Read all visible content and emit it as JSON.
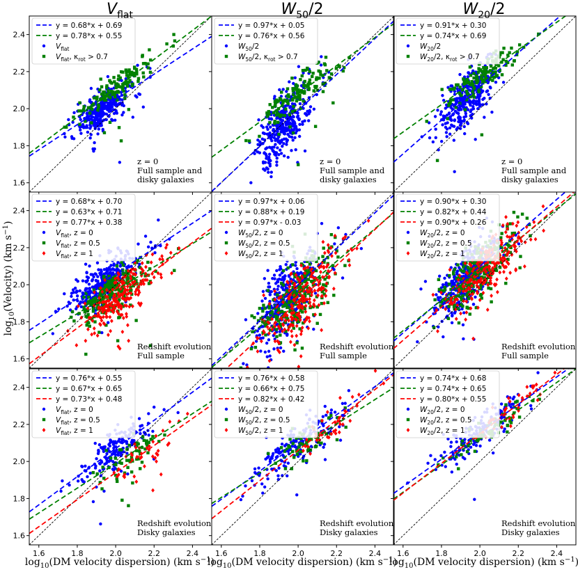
{
  "figure": {
    "ylabel_main": "log",
    "ylabel_sub": "10",
    "ylabel_tail": "(Velocity) (km s",
    "ylabel_sup": "−1",
    "ylabel_close": ")",
    "xlabel_main": "log",
    "xlabel_sub": "10",
    "xlabel_tail": "(DM velocity dispersion) (km s",
    "xlabel_sup": "−1",
    "xlabel_close": ")"
  },
  "columns": [
    {
      "title_main": "V",
      "title_sub": "flat",
      "title_rest": ""
    },
    {
      "title_main": "W",
      "title_sub": "50",
      "title_rest": "/2"
    },
    {
      "title_main": "W",
      "title_sub": "20",
      "title_rest": "/2"
    }
  ],
  "colors": {
    "blue": "#0000ff",
    "green": "#008000",
    "red": "#ff0000",
    "identity": "#000000"
  },
  "chart_data": {
    "type": "scatter",
    "xlim": [
      1.55,
      2.5
    ],
    "ylim": [
      1.55,
      2.5
    ],
    "xticks": [
      1.6,
      1.8,
      2.0,
      2.2,
      2.4
    ],
    "yticks": [
      1.6,
      1.8,
      2.0,
      2.2,
      2.4
    ],
    "xtick_labels": [
      "1.6",
      "1.8",
      "2.0",
      "2.2",
      "2.4"
    ],
    "ytick_labels": [
      "1.6",
      "1.8",
      "2.0",
      "2.2",
      "2.4"
    ],
    "panels": [
      {
        "row": 0,
        "col": 0,
        "annotation": [
          "z = 0",
          "Full sample and",
          "disky galaxies"
        ],
        "fits": [
          {
            "slope": 0.68,
            "intercept": 0.69,
            "color": "blue",
            "label": "y = 0.68*x + 0.69"
          },
          {
            "slope": 0.78,
            "intercept": 0.55,
            "color": "green",
            "label": "y = 0.78*x + 0.55"
          }
        ],
        "scatter": [
          {
            "color": "blue",
            "marker": "circle",
            "label_main": "V",
            "label_sub": "flat",
            "label_rest": "",
            "xc": 1.93,
            "xs": 0.07,
            "slope": 0.68,
            "intercept": 0.69,
            "noise": 0.05,
            "n": 320,
            "seed": 11
          },
          {
            "color": "green",
            "marker": "square",
            "label_main": "V",
            "label_sub": "flat",
            "label_rest": ", κ",
            "label_sub2": "rot",
            "label_rest2": " > 0.7",
            "xc": 2.0,
            "xs": 0.1,
            "slope": 0.78,
            "intercept": 0.55,
            "noise": 0.04,
            "n": 140,
            "seed": 12
          }
        ]
      },
      {
        "row": 0,
        "col": 1,
        "annotation": [
          "z = 0",
          "Full sample and",
          "disky galaxies"
        ],
        "fits": [
          {
            "slope": 0.97,
            "intercept": 0.05,
            "color": "blue",
            "label": "y = 0.97*x + 0.05"
          },
          {
            "slope": 0.76,
            "intercept": 0.56,
            "color": "green",
            "label": "y = 0.76*x + 0.56"
          }
        ],
        "scatter": [
          {
            "color": "blue",
            "marker": "circle",
            "label_main": "W",
            "label_sub": "50",
            "label_rest": "/2",
            "xc": 1.93,
            "xs": 0.07,
            "slope": 0.97,
            "intercept": 0.05,
            "noise": 0.09,
            "n": 340,
            "seed": 21
          },
          {
            "color": "green",
            "marker": "square",
            "label_main": "W",
            "label_sub": "50",
            "label_rest": "/2, κ",
            "label_sub2": "rot",
            "label_rest2": " > 0.7",
            "xc": 2.0,
            "xs": 0.1,
            "slope": 0.76,
            "intercept": 0.56,
            "noise": 0.04,
            "n": 140,
            "seed": 22
          }
        ]
      },
      {
        "row": 0,
        "col": 2,
        "annotation": [
          "z = 0",
          "Full sample and",
          "disky galaxies"
        ],
        "fits": [
          {
            "slope": 0.91,
            "intercept": 0.3,
            "color": "blue",
            "label": "y = 0.91*x + 0.30"
          },
          {
            "slope": 0.74,
            "intercept": 0.69,
            "color": "green",
            "label": "y = 0.74*x + 0.69"
          }
        ],
        "scatter": [
          {
            "color": "blue",
            "marker": "circle",
            "label_main": "W",
            "label_sub": "20",
            "label_rest": "/2",
            "xc": 1.93,
            "xs": 0.07,
            "slope": 0.91,
            "intercept": 0.3,
            "noise": 0.07,
            "n": 330,
            "seed": 31
          },
          {
            "color": "green",
            "marker": "square",
            "label_main": "W",
            "label_sub": "20",
            "label_rest": "/2, κ",
            "label_sub2": "rot",
            "label_rest2": " > 0.7",
            "xc": 2.0,
            "xs": 0.1,
            "slope": 0.74,
            "intercept": 0.69,
            "noise": 0.04,
            "n": 140,
            "seed": 32
          }
        ]
      },
      {
        "row": 1,
        "col": 0,
        "annotation": [
          "Redshift evolution",
          "Full sample"
        ],
        "fits": [
          {
            "slope": 0.68,
            "intercept": 0.7,
            "color": "blue",
            "label": "y = 0.68*x + 0.70"
          },
          {
            "slope": 0.63,
            "intercept": 0.71,
            "color": "green",
            "label": "y = 0.63*x + 0.71"
          },
          {
            "slope": 0.77,
            "intercept": 0.38,
            "color": "red",
            "label": "y = 0.77*x + 0.38"
          }
        ],
        "scatter": [
          {
            "color": "blue",
            "marker": "circle",
            "label_main": "V",
            "label_sub": "flat",
            "label_rest": ", z = 0",
            "xc": 1.93,
            "xs": 0.08,
            "slope": 0.68,
            "intercept": 0.7,
            "noise": 0.06,
            "n": 330,
            "seed": 41
          },
          {
            "color": "green",
            "marker": "square",
            "label_main": "V",
            "label_sub": "flat",
            "label_rest": ", z = 0.5",
            "xc": 1.98,
            "xs": 0.09,
            "slope": 0.63,
            "intercept": 0.71,
            "noise": 0.06,
            "n": 240,
            "seed": 42
          },
          {
            "color": "red",
            "marker": "diamond",
            "label_main": "V",
            "label_sub": "flat",
            "label_rest": ", z = 1",
            "xc": 2.02,
            "xs": 0.1,
            "slope": 0.77,
            "intercept": 0.38,
            "noise": 0.06,
            "n": 220,
            "seed": 43
          }
        ]
      },
      {
        "row": 1,
        "col": 1,
        "annotation": [
          "Redshift evolution",
          "Full sample"
        ],
        "fits": [
          {
            "slope": 0.97,
            "intercept": 0.06,
            "color": "blue",
            "label": "y = 0.97*x + 0.06"
          },
          {
            "slope": 0.88,
            "intercept": 0.19,
            "color": "green",
            "label": "y = 0.88*x + 0.19"
          },
          {
            "slope": 0.97,
            "intercept": -0.03,
            "color": "red",
            "label": "y = 0.97*x - 0.03"
          }
        ],
        "scatter": [
          {
            "color": "blue",
            "marker": "circle",
            "label_main": "W",
            "label_sub": "50",
            "label_rest": "/2, z = 0",
            "xc": 1.93,
            "xs": 0.08,
            "slope": 0.97,
            "intercept": 0.06,
            "noise": 0.1,
            "n": 340,
            "seed": 51
          },
          {
            "color": "green",
            "marker": "square",
            "label_main": "W",
            "label_sub": "50",
            "label_rest": "/2, z = 0.5",
            "xc": 1.98,
            "xs": 0.09,
            "slope": 0.88,
            "intercept": 0.19,
            "noise": 0.09,
            "n": 250,
            "seed": 52
          },
          {
            "color": "red",
            "marker": "diamond",
            "label_main": "W",
            "label_sub": "50",
            "label_rest": "/2, z = 1",
            "xc": 2.02,
            "xs": 0.1,
            "slope": 0.97,
            "intercept": -0.03,
            "noise": 0.09,
            "n": 220,
            "seed": 53
          }
        ]
      },
      {
        "row": 1,
        "col": 2,
        "annotation": [
          "Redshift evolution",
          "Full sample"
        ],
        "fits": [
          {
            "slope": 0.9,
            "intercept": 0.3,
            "color": "blue",
            "label": "y = 0.90*x + 0.30"
          },
          {
            "slope": 0.82,
            "intercept": 0.44,
            "color": "green",
            "label": "y = 0.82*x + 0.44"
          },
          {
            "slope": 0.9,
            "intercept": 0.26,
            "color": "red",
            "label": "y = 0.90*x + 0.26"
          }
        ],
        "scatter": [
          {
            "color": "blue",
            "marker": "circle",
            "label_main": "W",
            "label_sub": "20",
            "label_rest": "/2, z = 0",
            "xc": 1.93,
            "xs": 0.08,
            "slope": 0.9,
            "intercept": 0.3,
            "noise": 0.08,
            "n": 340,
            "seed": 61
          },
          {
            "color": "green",
            "marker": "square",
            "label_main": "W",
            "label_sub": "20",
            "label_rest": "/2, z = 0.5",
            "xc": 1.98,
            "xs": 0.09,
            "slope": 0.82,
            "intercept": 0.44,
            "noise": 0.07,
            "n": 250,
            "seed": 62
          },
          {
            "color": "red",
            "marker": "diamond",
            "label_main": "W",
            "label_sub": "20",
            "label_rest": "/2, z = 1",
            "xc": 2.03,
            "xs": 0.1,
            "slope": 0.9,
            "intercept": 0.26,
            "noise": 0.07,
            "n": 230,
            "seed": 63
          }
        ]
      },
      {
        "row": 2,
        "col": 0,
        "annotation": [
          "Redshift evolution",
          "Disky galaxies"
        ],
        "fits": [
          {
            "slope": 0.76,
            "intercept": 0.55,
            "color": "blue",
            "label": "y = 0.76*x + 0.55"
          },
          {
            "slope": 0.67,
            "intercept": 0.65,
            "color": "green",
            "label": "y = 0.67*x + 0.65"
          },
          {
            "slope": 0.73,
            "intercept": 0.48,
            "color": "red",
            "label": "y = 0.73*x + 0.48"
          }
        ],
        "scatter": [
          {
            "color": "blue",
            "marker": "circle",
            "label_main": "V",
            "label_sub": "flat",
            "label_rest": ", z = 0",
            "xc": 2.0,
            "xs": 0.11,
            "slope": 0.76,
            "intercept": 0.55,
            "noise": 0.05,
            "n": 170,
            "seed": 71
          },
          {
            "color": "green",
            "marker": "square",
            "label_main": "V",
            "label_sub": "flat",
            "label_rest": ", z = 0.5",
            "xc": 2.05,
            "xs": 0.1,
            "slope": 0.67,
            "intercept": 0.65,
            "noise": 0.05,
            "n": 60,
            "seed": 72
          },
          {
            "color": "red",
            "marker": "diamond",
            "label_main": "V",
            "label_sub": "flat",
            "label_rest": ", z = 1",
            "xc": 2.15,
            "xs": 0.1,
            "slope": 0.73,
            "intercept": 0.48,
            "noise": 0.05,
            "n": 40,
            "seed": 73
          }
        ]
      },
      {
        "row": 2,
        "col": 1,
        "annotation": [
          "Redshift evolution",
          "Disky galaxies"
        ],
        "fits": [
          {
            "slope": 0.76,
            "intercept": 0.58,
            "color": "blue",
            "label": "y = 0.76*x + 0.58"
          },
          {
            "slope": 0.66,
            "intercept": 0.75,
            "color": "green",
            "label": "y = 0.66*x + 0.75"
          },
          {
            "slope": 0.82,
            "intercept": 0.42,
            "color": "red",
            "label": "y = 0.82*x + 0.42"
          }
        ],
        "scatter": [
          {
            "color": "blue",
            "marker": "circle",
            "label_main": "W",
            "label_sub": "50",
            "label_rest": "/2, z = 0",
            "xc": 2.0,
            "xs": 0.12,
            "slope": 0.76,
            "intercept": 0.58,
            "noise": 0.06,
            "n": 170,
            "seed": 81
          },
          {
            "color": "green",
            "marker": "square",
            "label_main": "W",
            "label_sub": "50",
            "label_rest": "/2, z = 0.5",
            "xc": 2.05,
            "xs": 0.1,
            "slope": 0.66,
            "intercept": 0.75,
            "noise": 0.05,
            "n": 60,
            "seed": 82
          },
          {
            "color": "red",
            "marker": "diamond",
            "label_main": "W",
            "label_sub": "50",
            "label_rest": "/2, z = 1",
            "xc": 2.15,
            "xs": 0.1,
            "slope": 0.82,
            "intercept": 0.42,
            "noise": 0.05,
            "n": 40,
            "seed": 83
          }
        ]
      },
      {
        "row": 2,
        "col": 2,
        "annotation": [
          "Redshift evolution",
          "Disky galaxies"
        ],
        "fits": [
          {
            "slope": 0.74,
            "intercept": 0.68,
            "color": "blue",
            "label": "y = 0.74*x + 0.68"
          },
          {
            "slope": 0.74,
            "intercept": 0.65,
            "color": "green",
            "label": "y = 0.74*x + 0.65"
          },
          {
            "slope": 0.8,
            "intercept": 0.55,
            "color": "red",
            "label": "y = 0.80*x + 0.55"
          }
        ],
        "scatter": [
          {
            "color": "blue",
            "marker": "circle",
            "label_main": "W",
            "label_sub": "20",
            "label_rest": "/2, z = 0",
            "xc": 2.0,
            "xs": 0.12,
            "slope": 0.74,
            "intercept": 0.68,
            "noise": 0.05,
            "n": 170,
            "seed": 91
          },
          {
            "color": "green",
            "marker": "square",
            "label_main": "W",
            "label_sub": "20",
            "label_rest": "/2, z = 0.5",
            "xc": 2.05,
            "xs": 0.1,
            "slope": 0.74,
            "intercept": 0.65,
            "noise": 0.04,
            "n": 60,
            "seed": 92
          },
          {
            "color": "red",
            "marker": "diamond",
            "label_main": "W",
            "label_sub": "20",
            "label_rest": "/2, z = 1",
            "xc": 2.15,
            "xs": 0.1,
            "slope": 0.8,
            "intercept": 0.55,
            "noise": 0.04,
            "n": 40,
            "seed": 93
          }
        ]
      }
    ]
  }
}
